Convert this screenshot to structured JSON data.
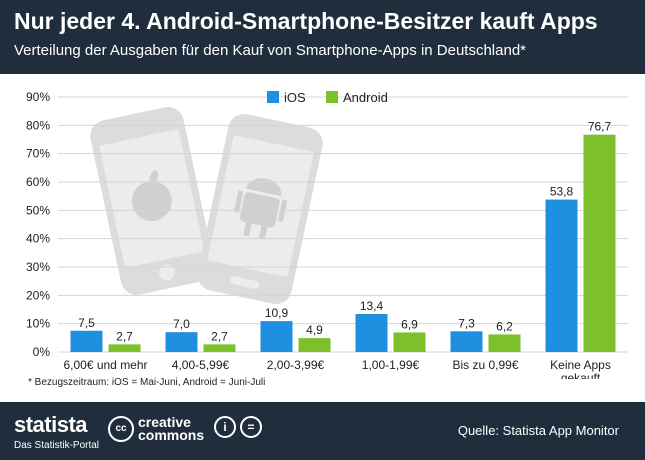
{
  "header": {
    "title": "Nur jeder 4. Android-Smartphone-Besitzer kauft Apps",
    "subtitle": "Verteilung der Ausgaben für den Kauf von Smartphone-Apps in Deutschland*"
  },
  "chart_data": {
    "type": "bar",
    "categories": [
      "6,00€ und mehr",
      "4,00-5,99€",
      "2,00-3,99€",
      "1,00-1,99€",
      "Bis zu 0,99€",
      "Keine Apps gekauft"
    ],
    "series": [
      {
        "name": "iOS",
        "color": "#1f8fe0",
        "values": [
          7.5,
          7.0,
          10.9,
          13.4,
          7.3,
          53.8
        ],
        "labels": [
          "7,5",
          "7,0",
          "10,9",
          "13,4",
          "7,3",
          "53,8"
        ]
      },
      {
        "name": "Android",
        "color": "#7cc02c",
        "values": [
          2.7,
          2.7,
          4.9,
          6.9,
          6.2,
          76.7
        ],
        "labels": [
          "2,7",
          "2,7",
          "4,9",
          "6,9",
          "6,2",
          "76,7"
        ]
      }
    ],
    "yticks": [
      "0%",
      "10%",
      "20%",
      "30%",
      "40%",
      "50%",
      "60%",
      "70%",
      "80%",
      "90%"
    ],
    "ylim": [
      0,
      90
    ],
    "grid": true,
    "legend": "top-left"
  },
  "footnote": "* Bezugszeitraum: iOS = Mai-Juni, Android = Juni-Juli",
  "footer": {
    "brand": "statista",
    "tagline": "Das Statistik-Portal",
    "cc_logo": "cc",
    "license_line1": "creative",
    "license_line2": "commons",
    "by_icon": "i",
    "nd_icon": "=",
    "source": "Quelle: Statista App Monitor"
  },
  "colors": {
    "header_bg": "#1f2d3d",
    "grid": "#d4d4d4",
    "watermark": "#d9d9d9"
  }
}
